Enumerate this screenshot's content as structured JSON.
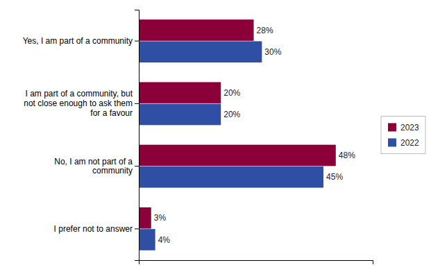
{
  "chart_data": {
    "type": "bar",
    "orientation": "horizontal",
    "categories": [
      "Yes, I am part of a community",
      "I am part of a community, but\nnot close enough to ask them\nfor a favour",
      "No, I am not part of a\ncommunity",
      "I prefer not to answer"
    ],
    "series": [
      {
        "name": "2023",
        "color": "#8B0038",
        "values": [
          28,
          20,
          48,
          3
        ],
        "value_labels": [
          "28%",
          "20%",
          "48%",
          "3%"
        ]
      },
      {
        "name": "2022",
        "color": "#2E4FA3",
        "values": [
          30,
          20,
          45,
          4
        ],
        "value_labels": [
          "30%",
          "20%",
          "45%",
          "4%"
        ]
      }
    ],
    "xlim": [
      0,
      57
    ],
    "data_labels": true,
    "tick_labels": "y",
    "grid": false,
    "legend": "right"
  }
}
